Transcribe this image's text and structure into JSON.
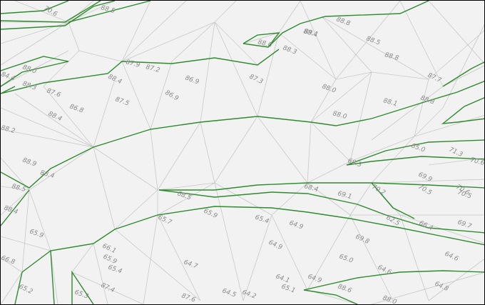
{
  "map": {
    "colors": {
      "background": "#f2f2f2",
      "triangulation_lines": "#c8c8c8",
      "contour_lines": "#2e8b2e",
      "elevation_labels": "#8a8a8a",
      "frame": "#000000"
    },
    "elevation_labels": [
      "70.6",
      "88.5",
      "88.8",
      "89.1",
      "88.5",
      "88.8",
      "87.7",
      "88.0",
      "88.3",
      "88.4",
      "88.0",
      "87.9",
      "87.2",
      "88.4",
      "86.9",
      "87.3",
      "88.8",
      "88.1",
      "88.0",
      "86.9",
      "87.5",
      "88.0",
      "84.4",
      "88.3",
      "87.6",
      "86.8",
      "88.2",
      "88.4",
      "88.9",
      "88.4",
      "88.5",
      "88.4",
      "65.0",
      "68.3",
      "68.4",
      "69.1",
      "70.2",
      "70.5",
      "70.6",
      "69.9",
      "71.3",
      "70.6",
      "70.5",
      "68.5",
      "65.7",
      "65.9",
      "65.4",
      "64.9",
      "62.5",
      "66.4",
      "69.8",
      "65.9",
      "66.1",
      "65.9",
      "65.4",
      "64.7",
      "64.9",
      "65.0",
      "64.6",
      "69.7",
      "64.6",
      "66.8",
      "65.2",
      "65.3",
      "87.4",
      "87.6",
      "64.5",
      "64.2",
      "65.1",
      "64.9",
      "64.1",
      "64.8",
      "88.6",
      "88.0"
    ]
  }
}
